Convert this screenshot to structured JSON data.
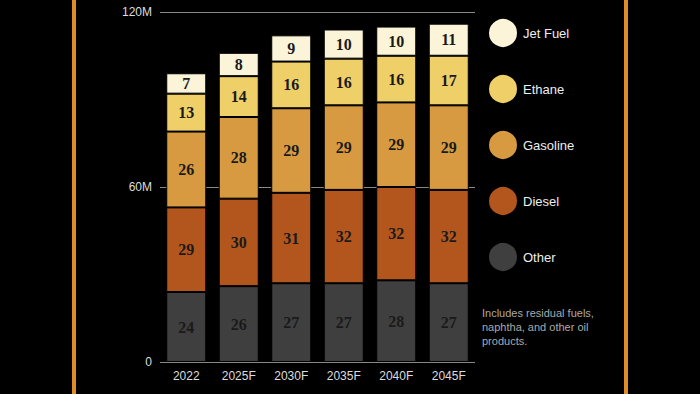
{
  "chart_data": {
    "type": "bar",
    "stacked": true,
    "data_labels": true,
    "grid": true,
    "legend": "right",
    "categories": [
      "2022",
      "2025F",
      "2030F",
      "2035F",
      "2040F",
      "2045F"
    ],
    "series": [
      {
        "name": "Other",
        "color": "#3f3f3f",
        "values": [
          24,
          26,
          27,
          27,
          28,
          27
        ]
      },
      {
        "name": "Diesel",
        "color": "#b3561d",
        "values": [
          29,
          30,
          31,
          32,
          32,
          32
        ]
      },
      {
        "name": "Gasoline",
        "color": "#d79a40",
        "values": [
          26,
          28,
          29,
          29,
          29,
          29
        ]
      },
      {
        "name": "Ethane",
        "color": "#eecf68",
        "values": [
          13,
          14,
          16,
          16,
          16,
          17
        ]
      },
      {
        "name": "Jet Fuel",
        "color": "#fbf4d8",
        "values": [
          7,
          8,
          9,
          10,
          10,
          11
        ]
      }
    ],
    "ylim": [
      0,
      120
    ],
    "yticks": [
      0,
      {
        "value": 60,
        "label": "60M"
      },
      {
        "value": 120,
        "label": "120M"
      }
    ],
    "annotations": [
      "Includes residual fuels, naphtha, and other oil products."
    ]
  }
}
